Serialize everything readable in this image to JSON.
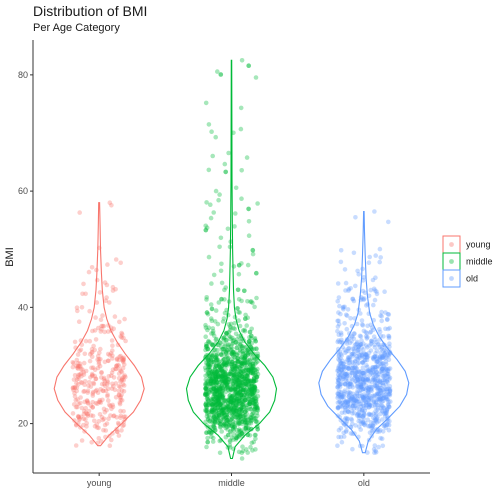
{
  "chart_data": {
    "type": "violin",
    "title": "Distribution of BMI",
    "subtitle": "Per Age Category",
    "xlabel": "",
    "ylabel": "BMI",
    "categories": [
      "young",
      "middle",
      "old"
    ],
    "ylim": [
      11.5,
      86
    ],
    "yticks": [
      20,
      40,
      60,
      80
    ],
    "grid": false,
    "legend_position": "right",
    "colors": [
      "#F8766D",
      "#00BA38",
      "#619CFF"
    ],
    "series": [
      {
        "name": "young",
        "point_count": 350,
        "min": 16.2,
        "max": 58.0,
        "density": [
          [
            16.2,
            0.03
          ],
          [
            18,
            0.22
          ],
          [
            20,
            0.5
          ],
          [
            22,
            0.76
          ],
          [
            24,
            0.92
          ],
          [
            26,
            1.0
          ],
          [
            28,
            0.94
          ],
          [
            30,
            0.78
          ],
          [
            32,
            0.58
          ],
          [
            34,
            0.4
          ],
          [
            36,
            0.26
          ],
          [
            38,
            0.17
          ],
          [
            40,
            0.11
          ],
          [
            43,
            0.07
          ],
          [
            46,
            0.05
          ],
          [
            50,
            0.03
          ],
          [
            54,
            0.02
          ],
          [
            58,
            0.01
          ]
        ]
      },
      {
        "name": "middle",
        "point_count": 1500,
        "min": 14.0,
        "max": 82.5,
        "density": [
          [
            14,
            0.02
          ],
          [
            16,
            0.08
          ],
          [
            18,
            0.3
          ],
          [
            20,
            0.62
          ],
          [
            22,
            0.85
          ],
          [
            24,
            0.96
          ],
          [
            26,
            1.0
          ],
          [
            28,
            0.92
          ],
          [
            30,
            0.74
          ],
          [
            32,
            0.5
          ],
          [
            34,
            0.3
          ],
          [
            36,
            0.17
          ],
          [
            38,
            0.1
          ],
          [
            40,
            0.065
          ],
          [
            43,
            0.045
          ],
          [
            46,
            0.035
          ],
          [
            50,
            0.025
          ],
          [
            55,
            0.018
          ],
          [
            62,
            0.012
          ],
          [
            70,
            0.008
          ],
          [
            82.5,
            0.004
          ]
        ]
      },
      {
        "name": "old",
        "point_count": 900,
        "min": 15.0,
        "max": 56.5,
        "density": [
          [
            15,
            0.03
          ],
          [
            17,
            0.1
          ],
          [
            19,
            0.28
          ],
          [
            21,
            0.55
          ],
          [
            23,
            0.8
          ],
          [
            25,
            0.95
          ],
          [
            27,
            1.0
          ],
          [
            29,
            0.92
          ],
          [
            31,
            0.74
          ],
          [
            33,
            0.52
          ],
          [
            35,
            0.34
          ],
          [
            37,
            0.21
          ],
          [
            39,
            0.13
          ],
          [
            42,
            0.08
          ],
          [
            45,
            0.05
          ],
          [
            49,
            0.03
          ],
          [
            53,
            0.015
          ],
          [
            56.5,
            0.006
          ]
        ]
      }
    ]
  }
}
